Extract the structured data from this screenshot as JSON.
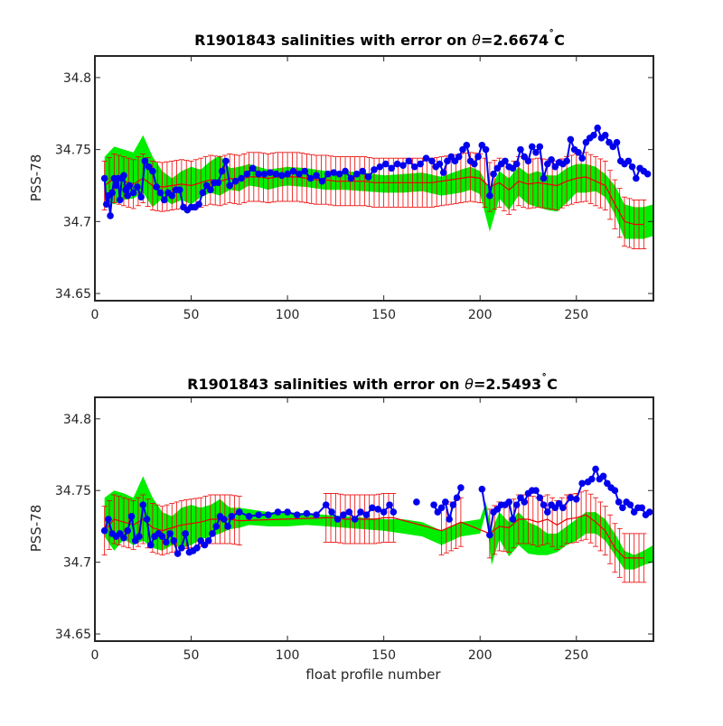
{
  "chart_data": [
    {
      "type": "line",
      "title_prefix": "R1901843 salinities with error on ",
      "title_theta": "θ",
      "title_value": "=2.6674",
      "title_deg": "˚",
      "title_unit": "C",
      "xlabel": "",
      "ylabel": "PSS-78",
      "xlim": [
        0,
        290
      ],
      "ylim": [
        34.645,
        34.815
      ],
      "xticks": [
        "0",
        "50",
        "100",
        "150",
        "200",
        "250"
      ],
      "xtick_values": [
        0,
        50,
        100,
        150,
        200,
        250
      ],
      "yticks": [
        "34.65",
        "34.7",
        "34.75",
        "34.8"
      ],
      "ytick_values": [
        34.65,
        34.7,
        34.75,
        34.8
      ],
      "colors": {
        "band": "#00ee00",
        "error": "#ee0000",
        "points": "#0000ee"
      },
      "band_x": [
        5,
        10,
        15,
        20,
        25,
        30,
        35,
        40,
        45,
        50,
        55,
        60,
        65,
        70,
        75,
        80,
        85,
        90,
        95,
        100,
        110,
        120,
        130,
        140,
        150,
        160,
        170,
        180,
        190,
        195,
        200,
        205,
        210,
        215,
        220,
        225,
        230,
        235,
        240,
        245,
        250,
        255,
        260,
        265,
        270,
        275,
        280,
        285,
        290
      ],
      "band_lo": [
        34.715,
        34.712,
        34.715,
        34.716,
        34.72,
        34.71,
        34.716,
        34.712,
        34.715,
        34.712,
        34.717,
        34.72,
        34.718,
        34.722,
        34.721,
        34.725,
        34.724,
        34.722,
        34.724,
        34.725,
        34.724,
        34.722,
        34.722,
        34.721,
        34.72,
        34.72,
        34.721,
        34.718,
        34.72,
        34.722,
        34.719,
        34.693,
        34.716,
        34.708,
        34.718,
        34.712,
        34.71,
        34.708,
        34.707,
        34.713,
        34.72,
        34.72,
        34.721,
        34.717,
        34.705,
        34.688,
        34.688,
        34.688,
        34.69
      ],
      "band_hi": [
        34.745,
        34.752,
        34.75,
        34.748,
        34.76,
        34.745,
        34.735,
        34.73,
        34.735,
        34.738,
        34.736,
        34.742,
        34.746,
        34.737,
        34.738,
        34.74,
        34.738,
        34.736,
        34.737,
        34.738,
        34.737,
        34.735,
        34.735,
        34.734,
        34.732,
        34.733,
        34.734,
        34.731,
        34.736,
        34.738,
        34.735,
        34.722,
        34.735,
        34.73,
        34.738,
        34.733,
        34.735,
        34.732,
        34.732,
        34.737,
        34.74,
        34.74,
        34.738,
        34.733,
        34.725,
        34.712,
        34.71,
        34.71,
        34.712
      ],
      "err_x": [
        5,
        10,
        15,
        20,
        25,
        30,
        35,
        40,
        45,
        50,
        55,
        60,
        65,
        70,
        75,
        80,
        85,
        90,
        95,
        100,
        105,
        110,
        115,
        120,
        125,
        130,
        135,
        140,
        145,
        150,
        155,
        160,
        165,
        170,
        175,
        180,
        185,
        190,
        195,
        200,
        205,
        210,
        215,
        220,
        225,
        230,
        235,
        240,
        245,
        250,
        255,
        260,
        265,
        270,
        275,
        280,
        285
      ],
      "err_mid": [
        34.725,
        34.73,
        34.728,
        34.726,
        34.73,
        34.725,
        34.724,
        34.725,
        34.726,
        34.725,
        34.727,
        34.729,
        34.728,
        34.73,
        34.729,
        34.731,
        34.731,
        34.73,
        34.731,
        34.731,
        34.731,
        34.73,
        34.729,
        34.729,
        34.728,
        34.728,
        34.728,
        34.728,
        34.727,
        34.727,
        34.727,
        34.727,
        34.727,
        34.727,
        34.727,
        34.728,
        34.729,
        34.73,
        34.731,
        34.73,
        34.724,
        34.727,
        34.722,
        34.728,
        34.726,
        34.727,
        34.726,
        34.725,
        34.728,
        34.73,
        34.731,
        34.728,
        34.725,
        34.712,
        34.7,
        34.698,
        34.698
      ],
      "err_half": 0.017,
      "points_x": [
        5,
        6,
        7,
        8,
        9,
        10,
        11,
        12,
        13,
        14,
        15,
        16,
        17,
        18,
        20,
        22,
        24,
        26,
        28,
        30,
        32,
        34,
        36,
        38,
        40,
        42,
        44,
        46,
        48,
        50,
        52,
        54,
        56,
        58,
        60,
        62,
        64,
        66,
        68,
        70,
        73,
        76,
        79,
        82,
        85,
        88,
        91,
        94,
        97,
        100,
        103,
        106,
        109,
        112,
        115,
        118,
        121,
        124,
        127,
        130,
        133,
        136,
        139,
        142,
        145,
        148,
        151,
        154,
        157,
        160,
        163,
        166,
        169,
        172,
        175,
        177,
        179,
        181,
        183,
        185,
        187,
        189,
        191,
        193,
        195,
        197,
        199,
        201,
        203,
        205,
        207,
        209,
        211,
        213,
        215,
        217,
        219,
        221,
        223,
        225,
        227,
        229,
        231,
        233,
        235,
        237,
        239,
        241,
        243,
        245,
        247,
        249,
        251,
        253,
        255,
        257,
        259,
        261,
        263,
        265,
        267,
        269,
        271,
        273,
        275,
        277,
        279,
        281,
        283,
        285,
        287
      ],
      "points_y": [
        34.73,
        34.712,
        34.718,
        34.704,
        34.72,
        34.73,
        34.725,
        34.73,
        34.715,
        34.73,
        34.732,
        34.722,
        34.718,
        34.725,
        34.72,
        34.724,
        34.717,
        34.742,
        34.738,
        34.735,
        34.724,
        34.72,
        34.715,
        34.72,
        34.718,
        34.722,
        34.722,
        34.71,
        34.708,
        34.71,
        34.71,
        34.712,
        34.72,
        34.725,
        34.722,
        34.727,
        34.727,
        34.735,
        34.742,
        34.725,
        34.728,
        34.73,
        34.733,
        34.737,
        34.733,
        34.733,
        34.734,
        34.733,
        34.732,
        34.733,
        34.735,
        34.733,
        34.735,
        34.73,
        34.732,
        34.728,
        34.733,
        34.734,
        34.733,
        34.735,
        34.73,
        34.733,
        34.735,
        34.731,
        34.736,
        34.738,
        34.74,
        34.737,
        34.74,
        34.739,
        34.742,
        34.738,
        34.74,
        34.744,
        34.742,
        34.738,
        34.74,
        34.734,
        34.742,
        34.745,
        34.742,
        34.745,
        34.75,
        34.753,
        34.742,
        34.74,
        34.745,
        34.753,
        34.75,
        34.718,
        34.733,
        34.737,
        34.74,
        34.742,
        34.738,
        34.737,
        34.74,
        34.75,
        34.745,
        34.742,
        34.752,
        34.748,
        34.752,
        34.73,
        34.74,
        34.743,
        34.738,
        34.741,
        34.74,
        34.742,
        34.757,
        34.75,
        34.748,
        34.744,
        34.755,
        34.758,
        34.76,
        34.765,
        34.758,
        34.76,
        34.755,
        34.752,
        34.755,
        34.742,
        34.74,
        34.742,
        34.738,
        34.73,
        34.737,
        34.735,
        34.733
      ]
    },
    {
      "type": "line",
      "title_prefix": "R1901843 salinities with error on ",
      "title_theta": "θ",
      "title_value": "=2.5493",
      "title_deg": "˚",
      "title_unit": "C",
      "xlabel": "float profile number",
      "ylabel": "PSS-78",
      "xlim": [
        0,
        290
      ],
      "ylim": [
        34.645,
        34.815
      ],
      "xticks": [
        "0",
        "50",
        "100",
        "150",
        "200",
        "250"
      ],
      "xtick_values": [
        0,
        50,
        100,
        150,
        200,
        250
      ],
      "yticks": [
        "34.65",
        "34.7",
        "34.75",
        "34.8"
      ],
      "ytick_values": [
        34.65,
        34.7,
        34.75,
        34.8
      ],
      "colors": {
        "band": "#00ee00",
        "error": "#ee0000",
        "points": "#0000ee"
      },
      "band_x": [
        5,
        10,
        15,
        20,
        25,
        30,
        35,
        40,
        45,
        50,
        55,
        60,
        65,
        70,
        75,
        80,
        90,
        100,
        110,
        120,
        130,
        140,
        150,
        160,
        170,
        180,
        190,
        200,
        203,
        206,
        210,
        215,
        220,
        225,
        230,
        235,
        240,
        245,
        250,
        255,
        260,
        265,
        270,
        275,
        280,
        285,
        290
      ],
      "band_lo": [
        34.718,
        34.708,
        34.716,
        34.712,
        34.715,
        34.71,
        34.708,
        34.712,
        34.71,
        34.712,
        34.716,
        34.718,
        34.72,
        34.723,
        34.724,
        34.726,
        34.725,
        34.725,
        34.726,
        34.725,
        34.724,
        34.723,
        34.722,
        34.72,
        34.718,
        34.712,
        34.718,
        34.72,
        34.735,
        34.698,
        34.716,
        34.704,
        34.712,
        34.706,
        34.705,
        34.705,
        34.707,
        34.712,
        34.715,
        34.72,
        34.72,
        34.715,
        34.705,
        34.695,
        34.695,
        34.698,
        34.7
      ],
      "band_hi": [
        34.745,
        34.75,
        34.748,
        34.745,
        34.76,
        34.745,
        34.735,
        34.732,
        34.738,
        34.74,
        34.738,
        34.74,
        34.744,
        34.738,
        34.738,
        34.737,
        34.735,
        34.735,
        34.734,
        34.733,
        34.732,
        34.731,
        34.73,
        34.73,
        34.728,
        34.722,
        34.728,
        34.73,
        34.742,
        34.722,
        34.735,
        34.728,
        34.735,
        34.728,
        34.725,
        34.72,
        34.72,
        34.725,
        34.73,
        34.735,
        34.735,
        34.73,
        34.72,
        34.708,
        34.705,
        34.708,
        34.712
      ],
      "err_x": [
        5,
        10,
        15,
        20,
        25,
        30,
        35,
        40,
        45,
        50,
        55,
        60,
        65,
        70,
        75,
        120,
        125,
        130,
        135,
        140,
        145,
        150,
        155,
        180,
        185,
        190,
        205,
        210,
        215,
        220,
        225,
        230,
        235,
        240,
        245,
        250,
        255,
        260,
        265,
        270,
        275,
        280,
        285
      ],
      "err_mid": [
        34.722,
        34.73,
        34.728,
        34.726,
        34.73,
        34.724,
        34.722,
        34.724,
        34.726,
        34.727,
        34.728,
        34.73,
        34.73,
        34.73,
        34.729,
        34.731,
        34.731,
        34.73,
        34.73,
        34.73,
        34.73,
        34.731,
        34.731,
        34.722,
        34.725,
        34.728,
        34.72,
        34.725,
        34.724,
        34.73,
        34.73,
        34.728,
        34.73,
        34.726,
        34.73,
        34.731,
        34.733,
        34.728,
        34.722,
        34.71,
        34.703,
        34.703,
        34.703
      ],
      "err_half": 0.017,
      "points_x": [
        5,
        7,
        9,
        11,
        13,
        15,
        17,
        19,
        21,
        23,
        25,
        27,
        29,
        31,
        33,
        35,
        37,
        39,
        41,
        43,
        45,
        47,
        49,
        51,
        53,
        55,
        57,
        59,
        61,
        63,
        65,
        67,
        69,
        71,
        75,
        80,
        85,
        90,
        95,
        100,
        105,
        110,
        115,
        120,
        123,
        126,
        129,
        132,
        135,
        138,
        141,
        144,
        147,
        150,
        153,
        155,
        167,
        176,
        178,
        180,
        182,
        184,
        186,
        188,
        190,
        201,
        205,
        207,
        209,
        211,
        213,
        215,
        217,
        219,
        221,
        223,
        225,
        227,
        229,
        231,
        233,
        235,
        237,
        239,
        241,
        243,
        247,
        250,
        253,
        256,
        258,
        260,
        262,
        264,
        266,
        268,
        270,
        272,
        274,
        276,
        278,
        280,
        282,
        284,
        286,
        288
      ],
      "points_y": [
        34.722,
        34.73,
        34.72,
        34.718,
        34.72,
        34.717,
        34.722,
        34.732,
        34.715,
        34.718,
        34.74,
        34.73,
        34.712,
        34.718,
        34.72,
        34.718,
        34.714,
        34.72,
        34.715,
        34.706,
        34.71,
        34.72,
        34.707,
        34.708,
        34.71,
        34.715,
        34.712,
        34.715,
        34.72,
        34.725,
        34.732,
        34.73,
        34.725,
        34.732,
        34.735,
        34.732,
        34.733,
        34.733,
        34.735,
        34.735,
        34.733,
        34.734,
        34.733,
        34.74,
        34.735,
        34.73,
        34.733,
        34.735,
        34.73,
        34.735,
        34.733,
        34.738,
        34.737,
        34.735,
        34.74,
        34.735,
        34.742,
        34.74,
        34.735,
        34.738,
        34.742,
        34.73,
        34.74,
        34.745,
        34.752,
        34.751,
        34.719,
        34.735,
        34.737,
        34.74,
        34.74,
        34.742,
        34.73,
        34.74,
        34.745,
        34.742,
        34.748,
        34.75,
        34.75,
        34.745,
        34.74,
        34.735,
        34.74,
        34.738,
        34.741,
        34.738,
        34.745,
        34.744,
        34.755,
        34.756,
        34.758,
        34.765,
        34.758,
        34.76,
        34.755,
        34.752,
        34.75,
        34.742,
        34.738,
        34.742,
        34.74,
        34.735,
        34.738,
        34.738,
        34.733,
        34.735
      ]
    }
  ]
}
